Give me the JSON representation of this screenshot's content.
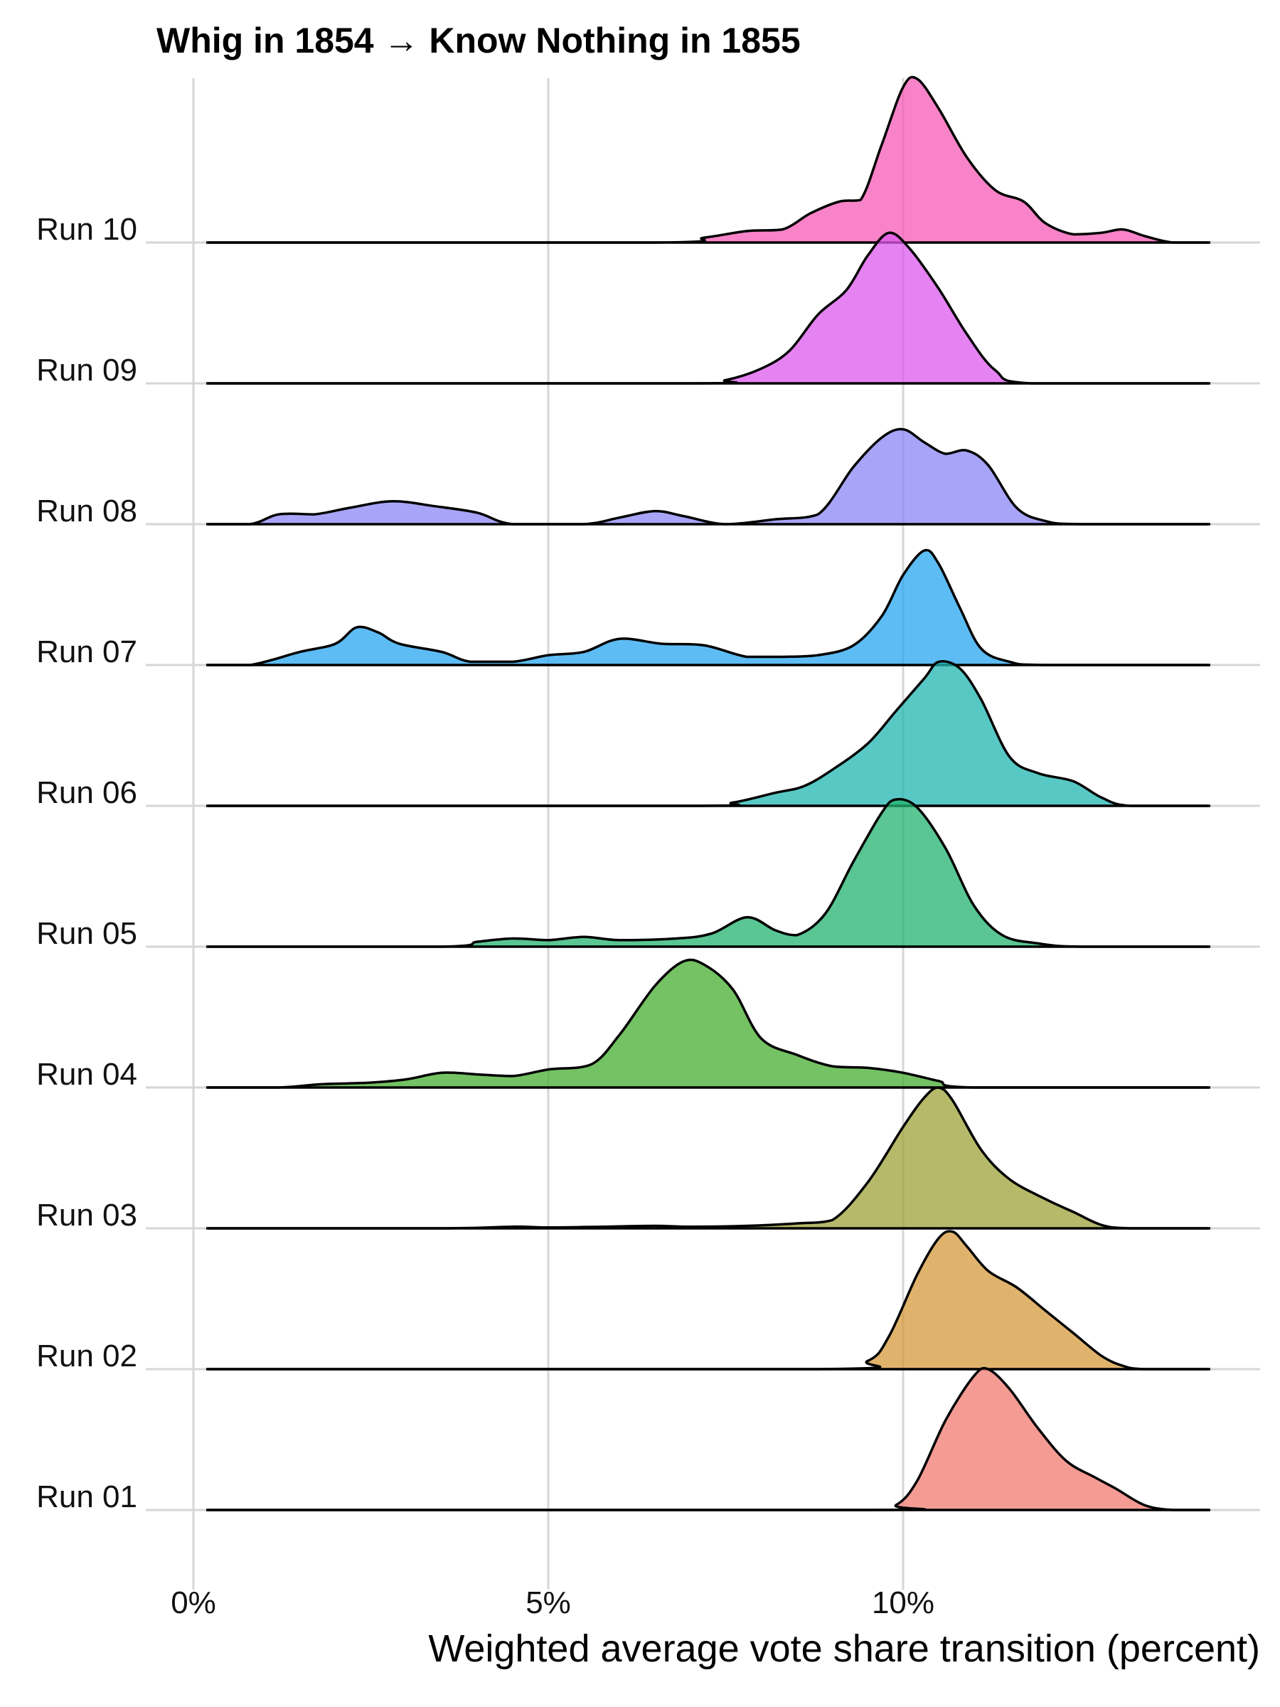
{
  "chart_data": {
    "type": "ridgeline",
    "title": "Whig in 1854 → Know Nothing in 1855",
    "xlabel": "Weighted average vote share transition (percent)",
    "ylabel": "",
    "xlim": [
      -0.3,
      14.7
    ],
    "x_ticks": [
      0,
      5,
      10
    ],
    "x_tick_labels": [
      "0%",
      "5%",
      "10%"
    ],
    "grid": true,
    "series": [
      {
        "name": "Run 01",
        "color": "#F07A70",
        "points": [
          [
            0.2,
            0
          ],
          [
            9.5,
            0
          ],
          [
            9.9,
            0.03
          ],
          [
            10.2,
            0.18
          ],
          [
            10.6,
            0.55
          ],
          [
            11.0,
            0.82
          ],
          [
            11.2,
            0.86
          ],
          [
            11.5,
            0.74
          ],
          [
            11.9,
            0.5
          ],
          [
            12.3,
            0.3
          ],
          [
            12.7,
            0.2
          ],
          [
            13.0,
            0.13
          ],
          [
            13.4,
            0.03
          ],
          [
            13.8,
            0
          ],
          [
            14.3,
            0
          ]
        ]
      },
      {
        "name": "Run 02",
        "color": "#D69A3C",
        "points": [
          [
            0.2,
            0
          ],
          [
            8.8,
            0
          ],
          [
            9.5,
            0.05
          ],
          [
            9.8,
            0.2
          ],
          [
            10.2,
            0.58
          ],
          [
            10.5,
            0.8
          ],
          [
            10.7,
            0.84
          ],
          [
            10.9,
            0.75
          ],
          [
            11.2,
            0.6
          ],
          [
            11.6,
            0.5
          ],
          [
            12.0,
            0.36
          ],
          [
            12.4,
            0.22
          ],
          [
            12.8,
            0.08
          ],
          [
            13.1,
            0.02
          ],
          [
            13.4,
            0
          ],
          [
            14.3,
            0
          ]
        ]
      },
      {
        "name": "Run 03",
        "color": "#9CA237",
        "points": [
          [
            0.2,
            0
          ],
          [
            3.5,
            0
          ],
          [
            4.5,
            0.01
          ],
          [
            5.0,
            0.005
          ],
          [
            5.8,
            0.01
          ],
          [
            6.5,
            0.015
          ],
          [
            7.0,
            0.01
          ],
          [
            7.8,
            0.015
          ],
          [
            8.5,
            0.03
          ],
          [
            9.0,
            0.05
          ],
          [
            9.5,
            0.28
          ],
          [
            10.0,
            0.62
          ],
          [
            10.3,
            0.8
          ],
          [
            10.5,
            0.86
          ],
          [
            10.7,
            0.78
          ],
          [
            11.1,
            0.48
          ],
          [
            11.5,
            0.3
          ],
          [
            12.0,
            0.18
          ],
          [
            12.4,
            0.1
          ],
          [
            12.8,
            0.02
          ],
          [
            13.2,
            0
          ],
          [
            14.3,
            0
          ]
        ]
      },
      {
        "name": "Run 04",
        "color": "#45AD2F",
        "points": [
          [
            0.2,
            0
          ],
          [
            1.2,
            0
          ],
          [
            1.8,
            0.02
          ],
          [
            2.5,
            0.03
          ],
          [
            3.0,
            0.05
          ],
          [
            3.5,
            0.09
          ],
          [
            4.0,
            0.08
          ],
          [
            4.5,
            0.07
          ],
          [
            5.0,
            0.11
          ],
          [
            5.6,
            0.14
          ],
          [
            6.0,
            0.32
          ],
          [
            6.5,
            0.62
          ],
          [
            6.9,
            0.77
          ],
          [
            7.2,
            0.75
          ],
          [
            7.6,
            0.6
          ],
          [
            8.0,
            0.3
          ],
          [
            8.5,
            0.2
          ],
          [
            9.0,
            0.13
          ],
          [
            9.5,
            0.12
          ],
          [
            10.0,
            0.09
          ],
          [
            10.5,
            0.04
          ],
          [
            11.0,
            0
          ],
          [
            14.3,
            0
          ]
        ]
      },
      {
        "name": "Run 05",
        "color": "#21B36F",
        "points": [
          [
            0.2,
            0
          ],
          [
            3.5,
            0
          ],
          [
            4.0,
            0.03
          ],
          [
            4.5,
            0.05
          ],
          [
            5.0,
            0.04
          ],
          [
            5.5,
            0.06
          ],
          [
            6.0,
            0.04
          ],
          [
            6.8,
            0.05
          ],
          [
            7.3,
            0.08
          ],
          [
            7.8,
            0.18
          ],
          [
            8.2,
            0.1
          ],
          [
            8.5,
            0.07
          ],
          [
            8.9,
            0.2
          ],
          [
            9.3,
            0.52
          ],
          [
            9.7,
            0.82
          ],
          [
            9.9,
            0.9
          ],
          [
            10.2,
            0.85
          ],
          [
            10.6,
            0.6
          ],
          [
            11.0,
            0.25
          ],
          [
            11.4,
            0.07
          ],
          [
            11.9,
            0.02
          ],
          [
            12.5,
            0
          ],
          [
            14.3,
            0
          ]
        ]
      },
      {
        "name": "Run 06",
        "color": "#20B6B1",
        "points": [
          [
            0.2,
            0
          ],
          [
            7.0,
            0
          ],
          [
            7.6,
            0.02
          ],
          [
            8.2,
            0.08
          ],
          [
            8.6,
            0.12
          ],
          [
            9.0,
            0.22
          ],
          [
            9.5,
            0.38
          ],
          [
            9.9,
            0.58
          ],
          [
            10.3,
            0.78
          ],
          [
            10.5,
            0.88
          ],
          [
            10.8,
            0.84
          ],
          [
            11.1,
            0.65
          ],
          [
            11.5,
            0.3
          ],
          [
            11.9,
            0.2
          ],
          [
            12.4,
            0.15
          ],
          [
            12.8,
            0.05
          ],
          [
            13.2,
            0
          ],
          [
            14.3,
            0
          ]
        ]
      },
      {
        "name": "Run 07",
        "color": "#27A6F0",
        "points": [
          [
            0.2,
            0
          ],
          [
            0.8,
            0
          ],
          [
            1.5,
            0.08
          ],
          [
            2.0,
            0.13
          ],
          [
            2.3,
            0.23
          ],
          [
            2.6,
            0.2
          ],
          [
            2.9,
            0.13
          ],
          [
            3.5,
            0.08
          ],
          [
            3.9,
            0.02
          ],
          [
            4.5,
            0.02
          ],
          [
            5.0,
            0.06
          ],
          [
            5.5,
            0.08
          ],
          [
            6.0,
            0.16
          ],
          [
            6.6,
            0.13
          ],
          [
            7.2,
            0.12
          ],
          [
            7.8,
            0.05
          ],
          [
            8.3,
            0.05
          ],
          [
            8.8,
            0.06
          ],
          [
            9.3,
            0.12
          ],
          [
            9.7,
            0.3
          ],
          [
            10.0,
            0.55
          ],
          [
            10.3,
            0.7
          ],
          [
            10.5,
            0.62
          ],
          [
            10.8,
            0.35
          ],
          [
            11.1,
            0.1
          ],
          [
            11.5,
            0.02
          ],
          [
            12.0,
            0
          ],
          [
            14.3,
            0
          ]
        ]
      },
      {
        "name": "Run 08",
        "color": "#8B87F5",
        "points": [
          [
            0.2,
            0
          ],
          [
            0.8,
            0
          ],
          [
            1.2,
            0.06
          ],
          [
            1.7,
            0.06
          ],
          [
            2.2,
            0.1
          ],
          [
            2.8,
            0.14
          ],
          [
            3.4,
            0.11
          ],
          [
            4.0,
            0.07
          ],
          [
            4.5,
            0
          ],
          [
            5.5,
            0
          ],
          [
            6.0,
            0.04
          ],
          [
            6.5,
            0.08
          ],
          [
            6.9,
            0.05
          ],
          [
            7.5,
            0
          ],
          [
            8.2,
            0.03
          ],
          [
            8.8,
            0.06
          ],
          [
            9.3,
            0.35
          ],
          [
            9.7,
            0.53
          ],
          [
            10.0,
            0.58
          ],
          [
            10.3,
            0.5
          ],
          [
            10.6,
            0.43
          ],
          [
            10.9,
            0.45
          ],
          [
            11.2,
            0.36
          ],
          [
            11.6,
            0.1
          ],
          [
            12.0,
            0.02
          ],
          [
            12.5,
            0
          ],
          [
            14.3,
            0
          ]
        ]
      },
      {
        "name": "Run 09",
        "color": "#DE5AEE",
        "points": [
          [
            0.2,
            0
          ],
          [
            7.0,
            0
          ],
          [
            7.5,
            0.02
          ],
          [
            8.0,
            0.09
          ],
          [
            8.4,
            0.2
          ],
          [
            8.8,
            0.42
          ],
          [
            9.2,
            0.57
          ],
          [
            9.5,
            0.78
          ],
          [
            9.8,
            0.92
          ],
          [
            10.1,
            0.82
          ],
          [
            10.5,
            0.58
          ],
          [
            10.9,
            0.3
          ],
          [
            11.3,
            0.08
          ],
          [
            11.8,
            0
          ],
          [
            14.3,
            0
          ]
        ]
      },
      {
        "name": "Run 10",
        "color": "#F55AB5",
        "points": [
          [
            0.2,
            0
          ],
          [
            6.5,
            0
          ],
          [
            7.2,
            0.03
          ],
          [
            7.8,
            0.07
          ],
          [
            8.3,
            0.08
          ],
          [
            8.7,
            0.18
          ],
          [
            9.1,
            0.25
          ],
          [
            9.4,
            0.26
          ],
          [
            9.7,
            0.6
          ],
          [
            10.0,
            0.95
          ],
          [
            10.2,
            1.0
          ],
          [
            10.5,
            0.82
          ],
          [
            10.9,
            0.52
          ],
          [
            11.3,
            0.32
          ],
          [
            11.7,
            0.25
          ],
          [
            12.0,
            0.12
          ],
          [
            12.4,
            0.05
          ],
          [
            12.8,
            0.06
          ],
          [
            13.1,
            0.08
          ],
          [
            13.4,
            0.04
          ],
          [
            13.8,
            0
          ],
          [
            14.3,
            0
          ]
        ]
      }
    ]
  }
}
